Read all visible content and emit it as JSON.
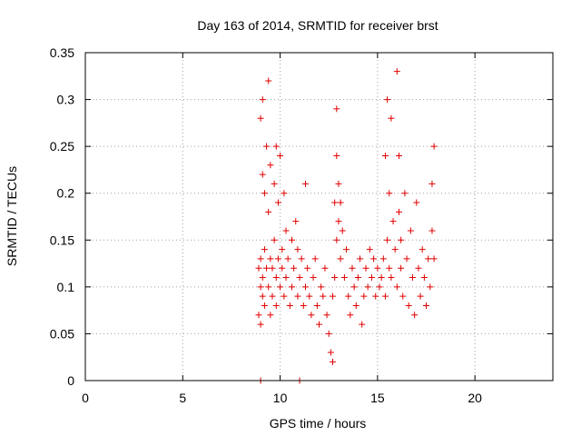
{
  "chart_data": {
    "type": "scatter",
    "title": "Day 163 of 2014, SRMTID for receiver brst",
    "xlabel": "GPS time / hours",
    "ylabel": "SRMTID / TECUs",
    "xlim": [
      0,
      24
    ],
    "ylim": [
      0,
      0.35
    ],
    "xticks": [
      0,
      5,
      10,
      15,
      20
    ],
    "yticks": [
      0,
      0.05,
      0.1,
      0.15,
      0.2,
      0.25,
      0.3,
      0.35
    ],
    "xtick_labels": [
      "0",
      "5",
      "10",
      "15",
      "20"
    ],
    "ytick_labels": [
      "0",
      "0.05",
      "0.1",
      "0.15",
      "0.2",
      "0.25",
      "0.3",
      "0.35"
    ],
    "grid": true,
    "marker": "+",
    "color": "#e00000",
    "series": [
      {
        "name": "SRMTID",
        "x": [
          8.9,
          8.9,
          9.0,
          9.0,
          9.0,
          9.0,
          9.1,
          9.1,
          9.1,
          9.1,
          9.2,
          9.2,
          9.2,
          9.3,
          9.3,
          9.4,
          9.4,
          9.4,
          9.5,
          9.5,
          9.5,
          9.6,
          9.6,
          9.7,
          9.7,
          9.8,
          9.8,
          9.8,
          9.9,
          9.9,
          10.0,
          10.0,
          10.1,
          10.1,
          10.2,
          10.2,
          10.3,
          10.3,
          10.4,
          10.5,
          10.6,
          10.6,
          10.7,
          10.8,
          10.9,
          10.9,
          11.0,
          11.1,
          11.2,
          11.3,
          11.3,
          11.4,
          11.5,
          11.6,
          11.7,
          11.8,
          11.9,
          12.0,
          12.1,
          12.2,
          12.3,
          12.4,
          12.5,
          12.6,
          12.7,
          12.7,
          12.8,
          12.8,
          12.9,
          12.9,
          12.9,
          13.0,
          13.0,
          13.1,
          13.1,
          13.2,
          13.3,
          13.4,
          13.5,
          13.6,
          13.7,
          13.8,
          13.9,
          14.0,
          14.1,
          14.2,
          14.3,
          14.4,
          14.5,
          14.6,
          14.7,
          14.8,
          14.9,
          15.0,
          15.1,
          15.2,
          15.3,
          15.4,
          15.4,
          15.5,
          15.5,
          15.6,
          15.6,
          15.7,
          15.7,
          15.8,
          15.9,
          16.0,
          16.0,
          16.1,
          16.1,
          16.2,
          16.2,
          16.3,
          16.4,
          16.5,
          16.6,
          16.7,
          16.8,
          16.9,
          17.0,
          17.1,
          17.2,
          17.3,
          17.4,
          17.5,
          17.6,
          17.7,
          17.8,
          17.8,
          17.9,
          17.9
        ],
        "y": [
          0.07,
          0.12,
          0.06,
          0.28,
          0.13,
          0.1,
          0.22,
          0.09,
          0.3,
          0.11,
          0.2,
          0.14,
          0.08,
          0.25,
          0.12,
          0.32,
          0.1,
          0.18,
          0.07,
          0.23,
          0.13,
          0.12,
          0.09,
          0.21,
          0.15,
          0.11,
          0.25,
          0.08,
          0.13,
          0.19,
          0.24,
          0.1,
          0.14,
          0.12,
          0.2,
          0.09,
          0.11,
          0.16,
          0.13,
          0.08,
          0.15,
          0.1,
          0.12,
          0.17,
          0.09,
          0.14,
          0.11,
          0.13,
          0.08,
          0.1,
          0.21,
          0.12,
          0.09,
          0.07,
          0.11,
          0.13,
          0.08,
          0.06,
          0.1,
          0.09,
          0.12,
          0.07,
          0.05,
          0.03,
          0.02,
          0.09,
          0.11,
          0.19,
          0.15,
          0.24,
          0.29,
          0.17,
          0.21,
          0.13,
          0.19,
          0.16,
          0.11,
          0.14,
          0.09,
          0.07,
          0.12,
          0.1,
          0.08,
          0.11,
          0.13,
          0.06,
          0.09,
          0.12,
          0.1,
          0.14,
          0.11,
          0.13,
          0.09,
          0.12,
          0.1,
          0.11,
          0.13,
          0.24,
          0.09,
          0.3,
          0.15,
          0.12,
          0.2,
          0.28,
          0.11,
          0.17,
          0.14,
          0.33,
          0.1,
          0.18,
          0.24,
          0.12,
          0.15,
          0.09,
          0.2,
          0.13,
          0.08,
          0.16,
          0.11,
          0.07,
          0.19,
          0.12,
          0.09,
          0.14,
          0.11,
          0.08,
          0.13,
          0.1,
          0.21,
          0.16,
          0.25,
          0.13
        ],
        "zero_markers_x": [
          9.0,
          11.0
        ]
      }
    ]
  }
}
